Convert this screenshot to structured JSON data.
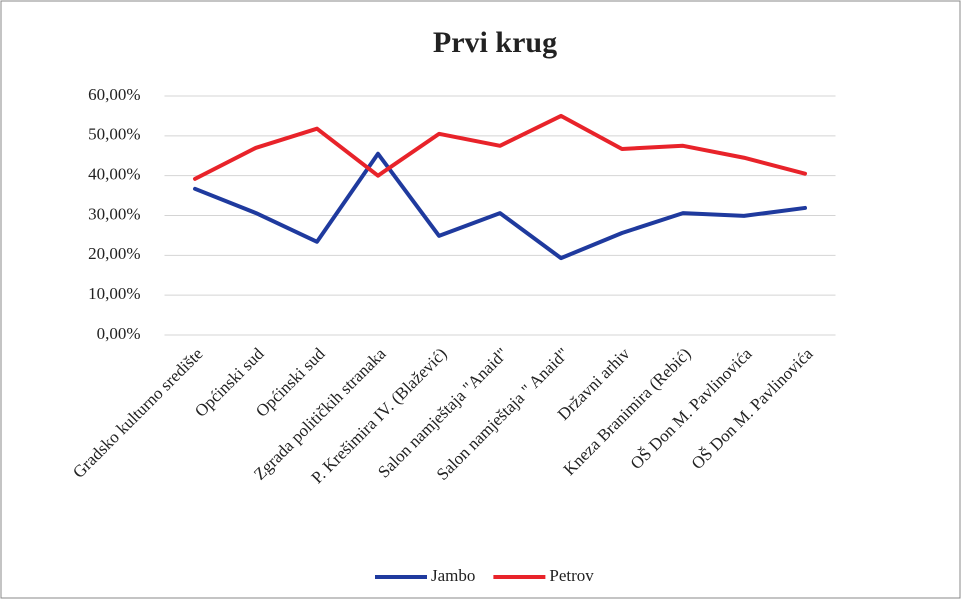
{
  "chart_data": {
    "type": "line",
    "title": "Prvi krug",
    "categories": [
      "Gradsko kulturno središte",
      "Općinski sud",
      "Općinski sud",
      "Zgrada političkih stranaka",
      "P. Krešimira IV. (Blažević)",
      "Salon namještaja \"Anaid\"",
      "Salon namještaja \" Anaid\"",
      "Državni arhiv",
      "Kneza Branimira  (Rebić)",
      "OŠ Don M. Pavlinovića",
      "OŠ Don M. Pavlinovića"
    ],
    "series": [
      {
        "name": "Jambo",
        "color": "#1f3a9e",
        "values": [
          36.7,
          30.6,
          23.4,
          45.5,
          24.9,
          30.6,
          19.3,
          25.6,
          30.6,
          29.9,
          31.9
        ]
      },
      {
        "name": "Petrov",
        "color": "#e8232a",
        "values": [
          39.2,
          47,
          51.8,
          40,
          50.5,
          47.5,
          55,
          46.7,
          47.5,
          44.5,
          40.5
        ]
      }
    ],
    "ylim": [
      0,
      60
    ],
    "yticks": [
      {
        "value": 0,
        "label": "0,00%"
      },
      {
        "value": 10,
        "label": "10,00%"
      },
      {
        "value": 20,
        "label": "20,00%"
      },
      {
        "value": 30,
        "label": "30,00%"
      },
      {
        "value": 40,
        "label": "40,00%"
      },
      {
        "value": 50,
        "label": "50,00%"
      },
      {
        "value": 60,
        "label": "60,00%"
      }
    ],
    "grid": true,
    "legend": "bottom"
  }
}
